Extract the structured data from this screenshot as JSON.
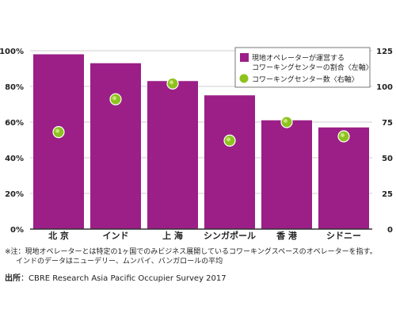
{
  "chart_data": {
    "type": "bar",
    "categories": [
      "北 京",
      "インド",
      "上 海",
      "シンガポール",
      "香 港",
      "シドニー"
    ],
    "series": [
      {
        "name": "現地オペレーターが運営するコワーキングセンターの割合〈左軸〉",
        "type": "bar",
        "axis": "left",
        "values": [
          98,
          93,
          83,
          75,
          61,
          57
        ],
        "color": "#9b1f87"
      },
      {
        "name": "コワーキングセンター数〈右軸〉",
        "type": "scatter",
        "axis": "right",
        "values": [
          68,
          91,
          102,
          62,
          75,
          65
        ],
        "color": "#8dc21f"
      }
    ],
    "y_left": {
      "ylim": [
        0,
        100
      ],
      "ticks": [
        "0%",
        "20%",
        "40%",
        "60%",
        "80%",
        "100%"
      ]
    },
    "y_right": {
      "ylim": [
        0,
        125
      ],
      "ticks": [
        "0",
        "25",
        "50",
        "75",
        "100",
        "125"
      ]
    },
    "legend": {
      "position": "top-right",
      "items": [
        {
          "line1": "現地オペレーターが運営する",
          "line2": "コワーキングセンターの割合〈左軸〉"
        },
        {
          "line1": "コワーキングセンター数〈右軸〉"
        }
      ]
    },
    "grid": true
  },
  "note_line1": "※注：現地オペレーターとは特定の1ヶ国でのみビジネス展開しているコワーキングスペースのオペレーターを指す。",
  "note_line2": "インドのデータはニューデリー、ムンバイ、バンガロールの平均",
  "source_label": "出所",
  "source_text": "：CBRE Research Asia Pacific Occupier Survey 2017"
}
